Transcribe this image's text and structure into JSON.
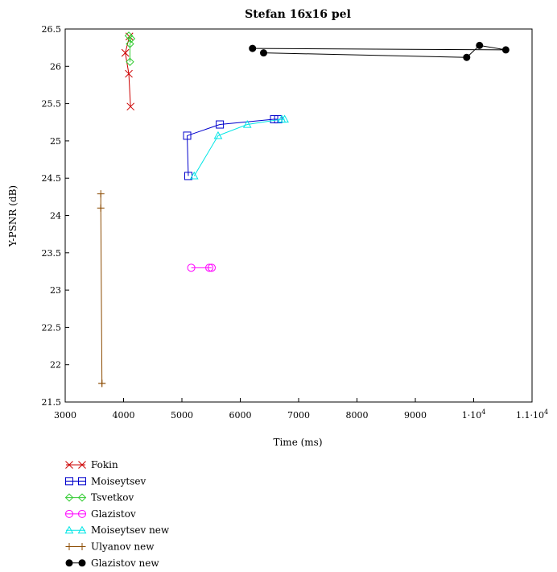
{
  "chart_data": {
    "type": "line",
    "title": "Stefan 16x16 pel",
    "xlabel": "Time (ms)",
    "ylabel": "Y-PSNR (dB)",
    "xlim": [
      3000,
      11000
    ],
    "ylim": [
      21.5,
      26.5
    ],
    "x_ticks": [
      3000,
      4000,
      5000,
      6000,
      7000,
      8000,
      9000,
      10000,
      11000
    ],
    "x_tick_labels": [
      "3000",
      "4000",
      "5000",
      "6000",
      "7000",
      "8000",
      "9000",
      "1·10",
      "1.1·10"
    ],
    "x_tick_exponents": [
      "",
      "",
      "",
      "",
      "",
      "",
      "",
      "4",
      "4"
    ],
    "y_ticks": [
      21.5,
      22,
      22.5,
      23,
      23.5,
      24,
      24.5,
      25,
      25.5,
      26,
      26.5
    ],
    "y_tick_labels": [
      "21.5",
      "22",
      "22.5",
      "23",
      "23.5",
      "24",
      "24.5",
      "25",
      "25.5",
      "26",
      "26.5"
    ],
    "grid": false,
    "legend_position": "below-left",
    "series": [
      {
        "name": "Fokin",
        "color": "#cc0000",
        "marker": "x",
        "x": [
          4120,
          4090,
          4030,
          4100
        ],
        "y": [
          25.46,
          25.9,
          26.18,
          26.4
        ]
      },
      {
        "name": "Moiseytsev",
        "color": "#0000cc",
        "marker": "square",
        "x": [
          5110,
          5090,
          5650,
          6580,
          6650
        ],
        "y": [
          24.53,
          25.07,
          25.22,
          25.29,
          25.29
        ]
      },
      {
        "name": "Tsvetkov",
        "color": "#33cc33",
        "marker": "diamond",
        "x": [
          4110,
          4110,
          4130,
          4090
        ],
        "y": [
          26.06,
          26.3,
          26.37,
          26.41
        ]
      },
      {
        "name": "Glazistov",
        "color": "#ff00ff",
        "marker": "circle",
        "x": [
          5160,
          5470,
          5510
        ],
        "y": [
          23.3,
          23.3,
          23.3
        ]
      },
      {
        "name": "Moiseytsev new",
        "color": "#00e5e5",
        "marker": "triangle",
        "x": [
          5210,
          5620,
          6120,
          6710,
          6760
        ],
        "y": [
          24.53,
          25.07,
          25.22,
          25.29,
          25.29
        ]
      },
      {
        "name": "Ulyanov new",
        "color": "#8b4a00",
        "marker": "plus",
        "x": [
          3610,
          3610,
          3630,
          3630
        ],
        "y": [
          24.29,
          24.1,
          21.75,
          21.75
        ]
      },
      {
        "name": "Glazistov new",
        "color": "#000000",
        "marker": "dot",
        "x": [
          6210,
          10550,
          10100,
          9880,
          6400
        ],
        "y": [
          26.24,
          26.22,
          26.28,
          26.12,
          26.18
        ]
      }
    ]
  }
}
